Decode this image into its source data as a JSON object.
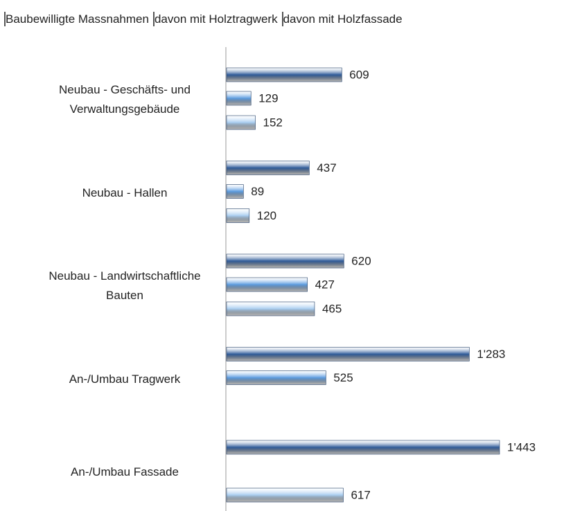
{
  "chart_data": {
    "type": "bar",
    "orientation": "horizontal",
    "categories": [
      "Neubau - Geschäfts- und Verwaltungsgebäude",
      "Neubau - Hallen",
      "Neubau - Landwirtschaftliche Bauten",
      "An-/Umbau Tragwerk",
      "An-/Umbau Fassade"
    ],
    "series": [
      {
        "name": "Baubewilligte Massnahmen",
        "color": "#2f5b9a",
        "values": [
          609,
          437,
          620,
          1283,
          1443
        ],
        "value_labels": [
          "609",
          "437",
          "620",
          "1'283",
          "1'443"
        ]
      },
      {
        "name": "davon mit Holztragwerk",
        "color": "#5b9be0",
        "values": [
          129,
          89,
          427,
          525,
          null
        ]
      },
      {
        "name": "davon mit Holzfassade",
        "color": "#a9cdf0",
        "values": [
          152,
          120,
          465,
          null,
          617
        ]
      }
    ],
    "legend": "top"
  }
}
